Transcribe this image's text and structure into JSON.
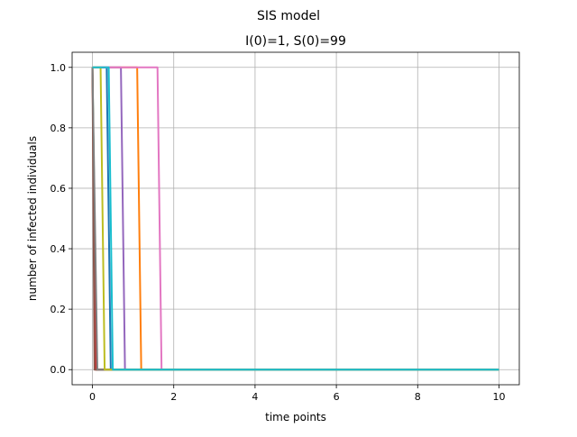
{
  "figure": {
    "suptitle": "SIS model"
  },
  "chart_data": {
    "type": "line",
    "title": "I(0)=1, S(0)=99",
    "xlabel": "time points",
    "ylabel": "number of infected individuals",
    "xlim": [
      -0.5,
      10.5
    ],
    "ylim": [
      -0.05,
      1.05
    ],
    "xticks": [
      0,
      2,
      4,
      6,
      8,
      10
    ],
    "xtick_labels": [
      "0",
      "2",
      "4",
      "6",
      "8",
      "10"
    ],
    "yticks": [
      0.0,
      0.2,
      0.4,
      0.6,
      0.8,
      1.0
    ],
    "ytick_labels": [
      "0.0",
      "0.2",
      "0.4",
      "0.6",
      "0.8",
      "1.0"
    ],
    "grid": true,
    "legend": "none",
    "series": [
      {
        "color": "#1f77b4",
        "x": [
          0,
          0.35,
          0.45,
          10
        ],
        "y": [
          1,
          1,
          0,
          0
        ]
      },
      {
        "color": "#ff7f0e",
        "x": [
          0,
          1.1,
          1.2,
          10
        ],
        "y": [
          1,
          1,
          0,
          0
        ]
      },
      {
        "color": "#2ca02c",
        "x": [
          0,
          0.1,
          10
        ],
        "y": [
          1,
          0,
          0
        ]
      },
      {
        "color": "#d62728",
        "x": [
          0,
          0.08,
          10
        ],
        "y": [
          1,
          0,
          0
        ]
      },
      {
        "color": "#9467bd",
        "x": [
          0,
          0.7,
          0.8,
          10
        ],
        "y": [
          1,
          1,
          0,
          0
        ]
      },
      {
        "color": "#8c564b",
        "x": [
          0,
          0.05,
          10
        ],
        "y": [
          1,
          0,
          0
        ]
      },
      {
        "color": "#e377c2",
        "x": [
          0,
          1.6,
          1.7,
          10
        ],
        "y": [
          1,
          1,
          0,
          0
        ]
      },
      {
        "color": "#7f7f7f",
        "x": [
          0,
          0.12,
          10
        ],
        "y": [
          1,
          0,
          0
        ]
      },
      {
        "color": "#bcbd22",
        "x": [
          0,
          0.2,
          0.3,
          10
        ],
        "y": [
          1,
          1,
          0,
          0
        ]
      },
      {
        "color": "#17becf",
        "x": [
          0,
          0.4,
          0.5,
          10
        ],
        "y": [
          1,
          1,
          0,
          0
        ]
      }
    ]
  }
}
